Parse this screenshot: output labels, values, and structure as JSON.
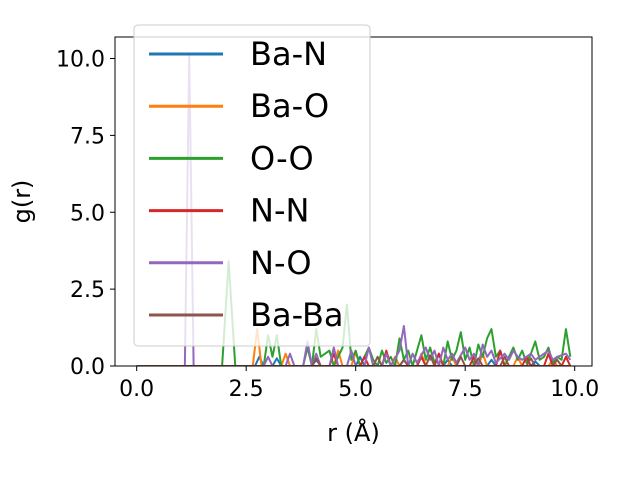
{
  "chart_data": {
    "type": "line",
    "title": "",
    "xlabel": "r (Å)",
    "ylabel": "g(r)",
    "xlim": [
      -0.495,
      10.395
    ],
    "ylim": [
      0,
      10.7
    ],
    "grid": false,
    "legend_position": "upper-left",
    "x_ticks": [
      0.0,
      2.5,
      5.0,
      7.5,
      10.0
    ],
    "x_tick_labels": [
      "0.0",
      "2.5",
      "5.0",
      "7.5",
      "10.0"
    ],
    "y_ticks": [
      0.0,
      2.5,
      5.0,
      7.5,
      10.0
    ],
    "y_tick_labels": [
      "0.0",
      "2.5",
      "5.0",
      "7.5",
      "10.0"
    ],
    "series": [
      {
        "name": "Ba-N",
        "color": "#1f77b4",
        "points": [
          [
            0.0,
            0
          ],
          [
            2.7,
            0
          ],
          [
            2.8,
            0.3
          ],
          [
            2.9,
            0
          ],
          [
            3.1,
            0
          ],
          [
            3.2,
            0.25
          ],
          [
            3.3,
            0
          ],
          [
            4.0,
            0
          ],
          [
            4.1,
            0.2
          ],
          [
            4.2,
            0
          ],
          [
            5.0,
            0
          ],
          [
            5.1,
            0.3
          ],
          [
            5.2,
            0
          ],
          [
            6.0,
            0
          ],
          [
            6.1,
            0.2
          ],
          [
            6.2,
            0
          ],
          [
            7.0,
            0
          ],
          [
            7.1,
            0.2
          ],
          [
            7.2,
            0
          ],
          [
            8.0,
            0
          ],
          [
            8.1,
            0.2
          ],
          [
            8.2,
            0
          ],
          [
            9.0,
            0
          ],
          [
            9.1,
            0.15
          ],
          [
            9.2,
            0
          ],
          [
            9.9,
            0
          ]
        ]
      },
      {
        "name": "Ba-O",
        "color": "#ff7f0e",
        "points": [
          [
            0.0,
            0
          ],
          [
            2.65,
            0
          ],
          [
            2.75,
            1.2
          ],
          [
            2.85,
            0
          ],
          [
            3.3,
            0
          ],
          [
            3.4,
            0.4
          ],
          [
            3.5,
            0
          ],
          [
            4.5,
            0
          ],
          [
            4.6,
            0.5
          ],
          [
            4.7,
            0
          ],
          [
            4.9,
            0
          ],
          [
            5.0,
            0.45
          ],
          [
            5.1,
            0
          ],
          [
            5.8,
            0
          ],
          [
            5.9,
            0.3
          ],
          [
            6.0,
            0
          ],
          [
            6.4,
            0
          ],
          [
            6.5,
            0.4
          ],
          [
            6.6,
            0
          ],
          [
            7.1,
            0
          ],
          [
            7.2,
            0.3
          ],
          [
            7.3,
            0
          ],
          [
            7.8,
            0
          ],
          [
            7.9,
            0.4
          ],
          [
            8.0,
            0
          ],
          [
            8.6,
            0
          ],
          [
            8.7,
            0.3
          ],
          [
            8.8,
            0
          ],
          [
            9.4,
            0
          ],
          [
            9.5,
            0.2
          ],
          [
            9.6,
            0
          ],
          [
            9.9,
            0
          ]
        ]
      },
      {
        "name": "O-O",
        "color": "#2ca02c",
        "points": [
          [
            0.0,
            0
          ],
          [
            1.95,
            0
          ],
          [
            2.1,
            3.4
          ],
          [
            2.25,
            0
          ],
          [
            2.9,
            0
          ],
          [
            3.0,
            1.0
          ],
          [
            3.1,
            0.3
          ],
          [
            3.2,
            1.0
          ],
          [
            3.3,
            0
          ],
          [
            3.8,
            0
          ],
          [
            3.9,
            0.6
          ],
          [
            4.0,
            0
          ],
          [
            4.1,
            1.2
          ],
          [
            4.2,
            0.3
          ],
          [
            4.4,
            0.5
          ],
          [
            4.5,
            0
          ],
          [
            4.7,
            0.6
          ],
          [
            4.8,
            2.0
          ],
          [
            4.9,
            0.2
          ],
          [
            5.0,
            0.5
          ],
          [
            5.1,
            0
          ],
          [
            5.3,
            0.6
          ],
          [
            5.4,
            0.2
          ],
          [
            5.5,
            0
          ],
          [
            5.6,
            0.5
          ],
          [
            5.7,
            0.1
          ],
          [
            5.8,
            0.3
          ],
          [
            5.9,
            0
          ],
          [
            6.0,
            0.9
          ],
          [
            6.1,
            0.2
          ],
          [
            6.2,
            0.5
          ],
          [
            6.3,
            0
          ],
          [
            6.5,
            1.0
          ],
          [
            6.6,
            0.2
          ],
          [
            6.7,
            0.6
          ],
          [
            6.8,
            0.1
          ],
          [
            6.9,
            0.4
          ],
          [
            7.0,
            0
          ],
          [
            7.1,
            0.8
          ],
          [
            7.2,
            0.2
          ],
          [
            7.3,
            0.5
          ],
          [
            7.4,
            1.1
          ],
          [
            7.5,
            0.2
          ],
          [
            7.6,
            0.6
          ],
          [
            7.7,
            0
          ],
          [
            7.8,
            0.7
          ],
          [
            7.9,
            0.3
          ],
          [
            8.0,
            0.9
          ],
          [
            8.1,
            1.2
          ],
          [
            8.2,
            0.3
          ],
          [
            8.3,
            0.5
          ],
          [
            8.4,
            0
          ],
          [
            8.6,
            0.6
          ],
          [
            8.7,
            0.2
          ],
          [
            8.8,
            0.5
          ],
          [
            8.9,
            0.1
          ],
          [
            9.0,
            0.4
          ],
          [
            9.1,
            0.8
          ],
          [
            9.2,
            0.2
          ],
          [
            9.3,
            0.3
          ],
          [
            9.4,
            0.6
          ],
          [
            9.5,
            0.1
          ],
          [
            9.6,
            0.3
          ],
          [
            9.7,
            0.2
          ],
          [
            9.8,
            1.2
          ],
          [
            9.9,
            0.3
          ]
        ]
      },
      {
        "name": "N-N",
        "color": "#d62728",
        "points": [
          [
            0.0,
            0
          ],
          [
            4.4,
            0
          ],
          [
            4.5,
            0.4
          ],
          [
            4.6,
            0
          ],
          [
            5.1,
            0
          ],
          [
            5.2,
            0.3
          ],
          [
            5.3,
            0
          ],
          [
            5.6,
            0
          ],
          [
            5.7,
            0.5
          ],
          [
            5.8,
            0
          ],
          [
            6.4,
            0
          ],
          [
            6.5,
            0.3
          ],
          [
            6.6,
            0
          ],
          [
            6.8,
            0
          ],
          [
            6.9,
            0.4
          ],
          [
            7.0,
            0
          ],
          [
            7.6,
            0
          ],
          [
            7.7,
            0.3
          ],
          [
            7.8,
            0
          ],
          [
            8.2,
            0
          ],
          [
            8.3,
            0.5
          ],
          [
            8.4,
            0
          ],
          [
            8.8,
            0
          ],
          [
            8.9,
            0.3
          ],
          [
            9.0,
            0
          ],
          [
            9.3,
            0
          ],
          [
            9.4,
            0.4
          ],
          [
            9.5,
            0
          ],
          [
            9.7,
            0
          ],
          [
            9.8,
            0.3
          ],
          [
            9.9,
            0
          ]
        ]
      },
      {
        "name": "N-O",
        "color": "#9467bd",
        "points": [
          [
            0.0,
            0
          ],
          [
            1.1,
            0
          ],
          [
            1.2,
            10.1
          ],
          [
            1.3,
            0
          ],
          [
            2.9,
            0
          ],
          [
            3.0,
            0.3
          ],
          [
            3.1,
            0
          ],
          [
            3.4,
            0
          ],
          [
            3.5,
            0.4
          ],
          [
            3.6,
            0
          ],
          [
            3.8,
            0
          ],
          [
            3.9,
            0.8
          ],
          [
            4.0,
            0
          ],
          [
            4.1,
            0.4
          ],
          [
            4.2,
            0
          ],
          [
            4.4,
            0
          ],
          [
            4.5,
            0.6
          ],
          [
            4.6,
            0
          ],
          [
            4.8,
            0
          ],
          [
            4.9,
            0.5
          ],
          [
            5.0,
            0
          ],
          [
            5.2,
            0
          ],
          [
            5.3,
            0.6
          ],
          [
            5.4,
            0
          ],
          [
            5.6,
            0
          ],
          [
            5.7,
            0.4
          ],
          [
            5.8,
            0
          ],
          [
            6.0,
            0.5
          ],
          [
            6.1,
            1.3
          ],
          [
            6.2,
            0
          ],
          [
            6.3,
            0.4
          ],
          [
            6.4,
            0.1
          ],
          [
            6.6,
            0.6
          ],
          [
            6.7,
            0.2
          ],
          [
            6.8,
            0.5
          ],
          [
            6.9,
            0
          ],
          [
            7.0,
            0.6
          ],
          [
            7.1,
            0.2
          ],
          [
            7.2,
            0.4
          ],
          [
            7.3,
            0.1
          ],
          [
            7.5,
            0.6
          ],
          [
            7.6,
            0.2
          ],
          [
            7.7,
            0.4
          ],
          [
            7.8,
            0
          ],
          [
            7.9,
            0.7
          ],
          [
            8.0,
            0.3
          ],
          [
            8.1,
            0.5
          ],
          [
            8.2,
            0.1
          ],
          [
            8.4,
            0.4
          ],
          [
            8.5,
            0.2
          ],
          [
            8.6,
            0.5
          ],
          [
            8.7,
            0.3
          ],
          [
            8.8,
            0.2
          ],
          [
            9.0,
            0.4
          ],
          [
            9.1,
            0.2
          ],
          [
            9.2,
            0.3
          ],
          [
            9.4,
            0.5
          ],
          [
            9.5,
            0.2
          ],
          [
            9.6,
            0.3
          ],
          [
            9.8,
            0.4
          ],
          [
            9.9,
            0.2
          ]
        ]
      },
      {
        "name": "Ba-Ba",
        "color": "#8c564b",
        "points": [
          [
            0.0,
            0
          ],
          [
            4.0,
            0
          ],
          [
            4.1,
            0.25
          ],
          [
            4.2,
            0
          ],
          [
            5.4,
            0
          ],
          [
            5.5,
            0.3
          ],
          [
            5.6,
            0
          ],
          [
            6.0,
            0
          ],
          [
            6.1,
            0.2
          ],
          [
            6.2,
            0
          ],
          [
            6.6,
            0
          ],
          [
            6.7,
            0.35
          ],
          [
            6.8,
            0
          ],
          [
            7.3,
            0
          ],
          [
            7.4,
            0.3
          ],
          [
            7.5,
            0
          ],
          [
            7.7,
            0
          ],
          [
            7.8,
            0.25
          ],
          [
            7.9,
            0
          ],
          [
            8.3,
            0
          ],
          [
            8.4,
            0.3
          ],
          [
            8.5,
            0
          ],
          [
            8.9,
            0
          ],
          [
            9.0,
            0.25
          ],
          [
            9.1,
            0
          ],
          [
            9.5,
            0
          ],
          [
            9.6,
            0.2
          ],
          [
            9.7,
            0
          ],
          [
            9.9,
            0
          ]
        ]
      }
    ]
  }
}
